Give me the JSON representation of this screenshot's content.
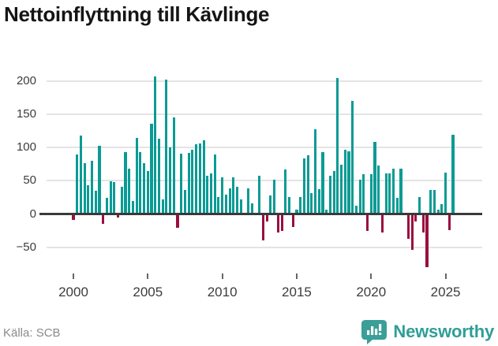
{
  "title": "Nettoinflyttning till Kävlinge",
  "source": "Källa: SCB",
  "branding": {
    "name": "Newsworthy"
  },
  "colors": {
    "positive_bar": "#0a9b94",
    "negative_bar": "#9a0f3f",
    "grid": "#e4e4e4",
    "zero_axis": "#3a3a3a",
    "brand_teal": "#2f9e97",
    "title_text": "#151515",
    "axis_text": "#3c3c3c",
    "source_text": "#8a8a8a"
  },
  "chart_data": {
    "type": "bar",
    "title": "Nettoinflyttning till Kävlinge",
    "frequency": "quarterly",
    "x_start": "2000 Q1",
    "x_end": "2025 Q3",
    "ylim": [
      -90,
      215
    ],
    "grid": "horizontal",
    "y_ticks": [
      200,
      150,
      100,
      50,
      0,
      -50
    ],
    "y_tick_labels": [
      "200",
      "150",
      "100",
      "50",
      "0",
      "−50"
    ],
    "x_ticks": [
      {
        "label": "2000",
        "quarter_index": 0
      },
      {
        "label": "2005",
        "quarter_index": 20
      },
      {
        "label": "2010",
        "quarter_index": 40
      },
      {
        "label": "2015",
        "quarter_index": 60
      },
      {
        "label": "2020",
        "quarter_index": 80
      },
      {
        "label": "2025",
        "quarter_index": 100
      }
    ],
    "values": [
      -7,
      90,
      118,
      77,
      43,
      80,
      35,
      102,
      -13,
      24,
      49,
      48,
      -3,
      41,
      93,
      68,
      20,
      114,
      93,
      76,
      65,
      136,
      207,
      113,
      22,
      202,
      100,
      145,
      -19,
      91,
      36,
      92,
      97,
      105,
      106,
      111,
      58,
      61,
      89,
      26,
      55,
      29,
      39,
      55,
      41,
      22,
      2,
      38,
      16,
      2,
      57,
      -38,
      -9,
      28,
      52,
      -26,
      -24,
      67,
      25,
      -18,
      7,
      25,
      84,
      88,
      31,
      127,
      37,
      93,
      6,
      58,
      65,
      204,
      74,
      96,
      94,
      170,
      12,
      52,
      60,
      -24,
      60,
      108,
      73,
      -26,
      61,
      61,
      68,
      24,
      68,
      2,
      -36,
      -52,
      -10,
      26,
      -26,
      -78,
      36,
      36,
      6,
      15,
      62,
      -23,
      119
    ]
  }
}
